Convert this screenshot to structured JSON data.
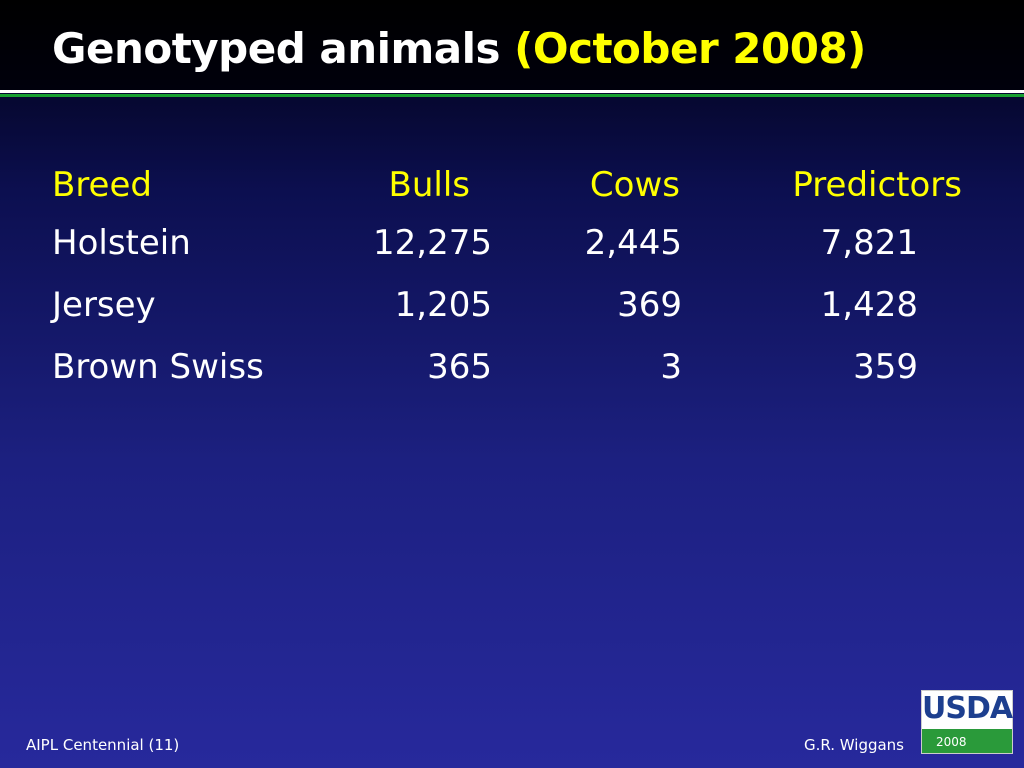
{
  "header": {
    "title": "Genotyped animals",
    "title_highlight": "(October 2008)"
  },
  "table": {
    "columns": [
      "Breed",
      "Bulls",
      "Cows",
      "Predictors"
    ],
    "rows": [
      [
        "Holstein",
        "12,275",
        "2,445",
        "7,821"
      ],
      [
        "Jersey",
        "1,205",
        "369",
        "1,428"
      ],
      [
        "Brown Swiss",
        "365",
        "3",
        "359"
      ]
    ]
  },
  "footer": {
    "left": "AIPL Centennial (11)",
    "right": "G.R. Wiggans"
  },
  "logo": {
    "name": "USDA",
    "year": "2008"
  }
}
